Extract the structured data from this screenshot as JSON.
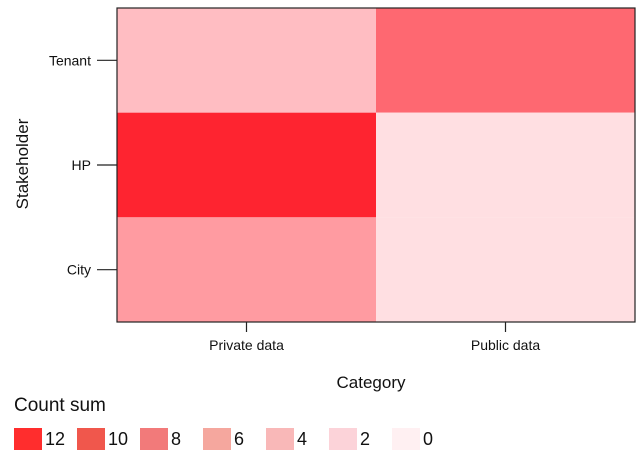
{
  "chart_data": {
    "type": "heatmap",
    "x_categories": [
      "Private data",
      "Public data"
    ],
    "y_categories": [
      "Tenant",
      "HP",
      "City"
    ],
    "values": [
      [
        3,
        8
      ],
      [
        12,
        1
      ],
      [
        5,
        1
      ]
    ],
    "xlabel": "Category",
    "ylabel": "Stakeholder",
    "value_range": [
      0,
      12
    ],
    "colorscale": [
      "#fff0f2",
      "#fe2430"
    ],
    "grid": false,
    "legend": {
      "title": "Count sum",
      "placement": "bottom-left",
      "items": [
        {
          "label": "12",
          "color": "#ff2d2d"
        },
        {
          "label": "10",
          "color": "#f0574c"
        },
        {
          "label": "8",
          "color": "#f27a7a"
        },
        {
          "label": "6",
          "color": "#f5a79e"
        },
        {
          "label": "4",
          "color": "#f9b8b8"
        },
        {
          "label": "2",
          "color": "#fcd3d9"
        },
        {
          "label": "0",
          "color": "#fff0f2"
        }
      ]
    }
  }
}
